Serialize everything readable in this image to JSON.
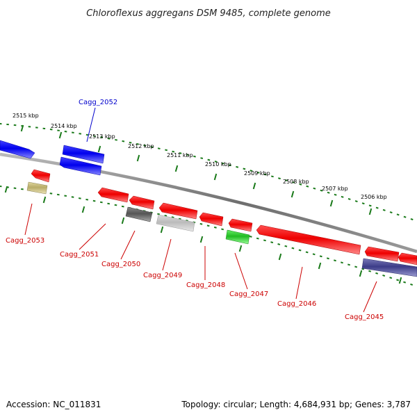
{
  "title": "Chloroflexus aggregans DSM 9485, complete genome",
  "accession": "Accession: NC_011831",
  "topology": "Topology: circular; Length: 4,684,931 bp; Genes: 3,787",
  "colors": {
    "backbone": "#7a7a7a",
    "ticks": "#1a7a1a",
    "red_gene": "#ee0000",
    "blue_gene": "#0000ee",
    "red_label": "#cc0000",
    "blue_label": "#0000cc"
  },
  "kbp_labels": [
    "2515 kbp",
    "2514 kbp",
    "2513 kbp",
    "2512 kbp",
    "2511 kbp",
    "2510 kbp",
    "2509 kbp",
    "2508 kbp",
    "2507 kbp",
    "2506 kbp"
  ],
  "gene_labels": [
    "Cagg_2052",
    "Cagg_2053",
    "Cagg_2051",
    "Cagg_2050",
    "Cagg_2049",
    "Cagg_2048",
    "Cagg_2047",
    "Cagg_2046",
    "Cagg_2045"
  ]
}
